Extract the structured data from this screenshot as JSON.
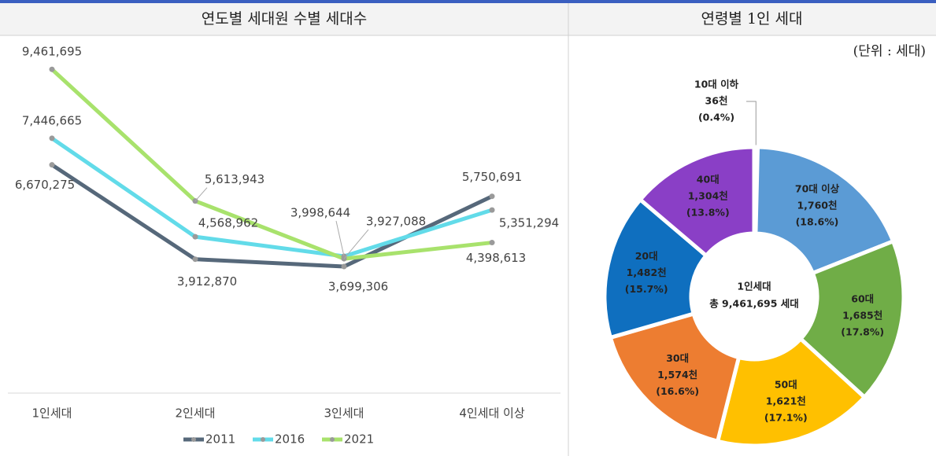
{
  "chart_data": [
    {
      "type": "line",
      "title": "연도별 세대원 수별 세대수",
      "categories": [
        "1인세대",
        "2인세대",
        "3인세대",
        "4인세대 이상"
      ],
      "series": [
        {
          "name": "2011",
          "color": "#56687a",
          "values": [
            6670275,
            3912870,
            3699306,
            5750691
          ],
          "value_labels": [
            "6,670,275",
            "3,912,870",
            "3,699,306",
            "5,750,691"
          ]
        },
        {
          "name": "2016",
          "color": "#62dbe9",
          "values": [
            7446665,
            4568962,
            3998644,
            5351294
          ],
          "value_labels": [
            "7,446,665",
            "4,568,962",
            "3,998,644",
            "5,351,294"
          ]
        },
        {
          "name": "2021",
          "color": "#a8e26c",
          "values": [
            9461695,
            5613943,
            3927088,
            4398613
          ],
          "value_labels": [
            "9,461,695",
            "5,613,943",
            "3,927,088",
            "4,398,613"
          ]
        }
      ],
      "ylim": [
        0,
        10500000
      ],
      "legend": "bottom"
    },
    {
      "type": "pie",
      "title": "연령별 1인 세대",
      "unit_note": "(단위 : 세대)",
      "center_label": "1인세대",
      "center_total": "총 9,461,695 세대",
      "categories": [
        "10대 이하",
        "70대 이상",
        "60대",
        "50대",
        "30대",
        "20대",
        "40대"
      ],
      "values": [
        36,
        1760,
        1685,
        1621,
        1574,
        1482,
        1304
      ],
      "value_labels": [
        "36천",
        "1,760천",
        "1,685천",
        "1,621천",
        "1,574천",
        "1,482천",
        "1,304천"
      ],
      "percents": [
        0.4,
        18.6,
        17.8,
        17.1,
        16.6,
        15.7,
        13.8
      ],
      "percent_labels": [
        "(0.4%)",
        "(18.6%)",
        "(17.8%)",
        "(17.1%)",
        "(16.6%)",
        "(15.7%)",
        "(13.8%)"
      ],
      "colors": [
        "#a5a5a5",
        "#5b9bd5",
        "#70ad47",
        "#ffc000",
        "#ed7d31",
        "#0f6fbf",
        "#8a3fc6"
      ]
    }
  ]
}
